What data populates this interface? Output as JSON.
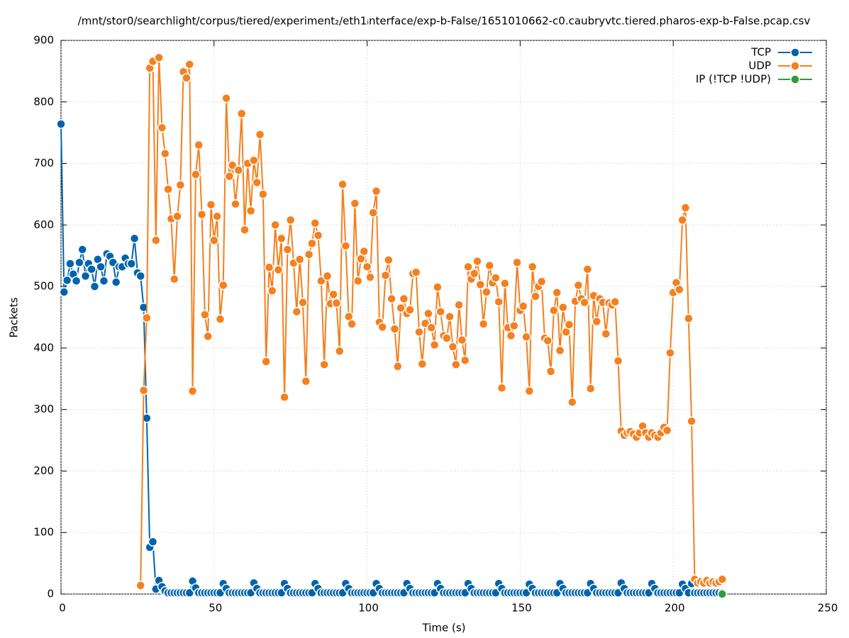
{
  "chart_data": {
    "type": "line",
    "title": "/mnt/stor0/searchlight/corpus/tiered/experiment₂/eth1ᵢnterface/exp-b-False/1651010662-c0.caubryvtc.tiered.pharos-exp-b-False.pcap.csv",
    "x_label": "Time (s)",
    "y_label": "Packets",
    "xlim": [
      0,
      250
    ],
    "xticks": [
      0,
      50,
      100,
      150,
      200,
      250
    ],
    "ylim": [
      0,
      900
    ],
    "yticks": [
      0,
      100,
      200,
      300,
      400,
      500,
      600,
      700,
      800,
      900
    ],
    "grid": true,
    "legend": "top-right",
    "x": [
      0,
      1,
      2,
      3,
      4,
      5,
      6,
      7,
      8,
      9,
      10,
      11,
      12,
      13,
      14,
      15,
      16,
      17,
      18,
      19,
      20,
      21,
      22,
      23,
      24,
      25,
      26,
      27,
      28,
      29,
      30,
      31,
      32,
      33,
      34,
      35,
      36,
      37,
      38,
      39,
      40,
      41,
      42,
      43,
      44,
      45,
      46,
      47,
      48,
      49,
      50,
      51,
      52,
      53,
      54,
      55,
      56,
      57,
      58,
      59,
      60,
      61,
      62,
      63,
      64,
      65,
      66,
      67,
      68,
      69,
      70,
      71,
      72,
      73,
      74,
      75,
      76,
      77,
      78,
      79,
      80,
      81,
      82,
      83,
      84,
      85,
      86,
      87,
      88,
      89,
      90,
      91,
      92,
      93,
      94,
      95,
      96,
      97,
      98,
      99,
      100,
      101,
      102,
      103,
      104,
      105,
      106,
      107,
      108,
      109,
      110,
      111,
      112,
      113,
      114,
      115,
      116,
      117,
      118,
      119,
      120,
      121,
      122,
      123,
      124,
      125,
      126,
      127,
      128,
      129,
      130,
      131,
      132,
      133,
      134,
      135,
      136,
      137,
      138,
      139,
      140,
      141,
      142,
      143,
      144,
      145,
      146,
      147,
      148,
      149,
      150,
      151,
      152,
      153,
      154,
      155,
      156,
      157,
      158,
      159,
      160,
      161,
      162,
      163,
      164,
      165,
      166,
      167,
      168,
      169,
      170,
      171,
      172,
      173,
      174,
      175,
      176,
      177,
      178,
      179,
      180,
      181,
      182,
      183,
      184,
      185,
      186,
      187,
      188,
      189,
      190,
      191,
      192,
      193,
      194,
      195,
      196,
      197,
      198,
      199,
      200,
      201,
      202,
      203,
      204,
      205,
      206,
      207,
      208,
      209,
      210,
      211,
      212,
      213,
      214,
      215,
      216
    ],
    "series": [
      {
        "name": "TCP",
        "color": "#0063ad",
        "values": [
          764,
          491,
          510,
          537,
          520,
          509,
          539,
          560,
          517,
          537,
          528,
          500,
          544,
          532,
          509,
          553,
          549,
          539,
          507,
          532,
          532,
          546,
          537,
          537,
          578,
          522,
          517,
          466,
          286,
          76,
          85,
          8,
          22,
          12,
          5,
          2,
          2,
          2,
          2,
          2,
          2,
          2,
          2,
          21,
          10,
          2,
          2,
          2,
          2,
          2,
          2,
          2,
          2,
          17,
          9,
          2,
          2,
          2,
          2,
          2,
          2,
          2,
          2,
          18,
          9,
          2,
          2,
          2,
          2,
          2,
          2,
          2,
          2,
          17,
          9,
          2,
          2,
          2,
          2,
          2,
          2,
          2,
          2,
          17,
          9,
          2,
          2,
          2,
          2,
          2,
          2,
          2,
          2,
          17,
          9,
          2,
          2,
          2,
          2,
          2,
          2,
          2,
          2,
          17,
          9,
          2,
          2,
          2,
          2,
          2,
          2,
          2,
          2,
          17,
          9,
          2,
          2,
          2,
          2,
          2,
          2,
          2,
          2,
          17,
          9,
          2,
          2,
          2,
          2,
          2,
          2,
          2,
          2,
          17,
          9,
          2,
          2,
          2,
          2,
          2,
          2,
          2,
          2,
          17,
          9,
          2,
          2,
          2,
          2,
          2,
          2,
          2,
          2,
          16,
          9,
          2,
          2,
          2,
          2,
          2,
          2,
          2,
          2,
          17,
          9,
          2,
          2,
          2,
          2,
          2,
          2,
          2,
          2,
          17,
          9,
          2,
          2,
          2,
          2,
          2,
          2,
          2,
          2,
          18,
          9,
          2,
          2,
          2,
          2,
          2,
          2,
          2,
          2,
          17,
          9,
          2,
          2,
          2,
          2,
          2,
          2,
          2,
          2,
          16,
          9,
          2,
          17,
          2,
          2,
          2,
          2,
          2,
          2,
          2,
          2,
          2,
          2
        ]
      },
      {
        "name": "UDP",
        "color": "#f4801f",
        "values": [
          null,
          null,
          null,
          null,
          null,
          null,
          null,
          null,
          null,
          null,
          null,
          null,
          null,
          null,
          null,
          null,
          null,
          null,
          null,
          null,
          null,
          null,
          null,
          null,
          null,
          null,
          14,
          331,
          449,
          855,
          866,
          575,
          872,
          758,
          716,
          658,
          610,
          512,
          614,
          665,
          849,
          839,
          861,
          330,
          682,
          730,
          617,
          454,
          419,
          633,
          575,
          614,
          447,
          502,
          806,
          679,
          697,
          634,
          689,
          781,
          592,
          700,
          623,
          705,
          669,
          747,
          650,
          378,
          531,
          493,
          600,
          527,
          578,
          320,
          560,
          608,
          538,
          459,
          544,
          474,
          346,
          552,
          570,
          603,
          583,
          509,
          373,
          517,
          472,
          487,
          473,
          395,
          666,
          566,
          451,
          439,
          635,
          509,
          545,
          557,
          532,
          515,
          620,
          655,
          442,
          434,
          518,
          543,
          480,
          431,
          370,
          465,
          480,
          456,
          462,
          521,
          523,
          426,
          374,
          440,
          456,
          433,
          405,
          499,
          459,
          420,
          416,
          451,
          402,
          373,
          470,
          413,
          380,
          532,
          512,
          521,
          541,
          503,
          439,
          491,
          534,
          506,
          514,
          475,
          335,
          505,
          433,
          420,
          436,
          539,
          461,
          468,
          418,
          330,
          532,
          484,
          500,
          508,
          416,
          412,
          362,
          461,
          490,
          396,
          466,
          426,
          438,
          312,
          476,
          502,
          480,
          474,
          528,
          334,
          485,
          443,
          480,
          474,
          423,
          473,
          470,
          475,
          379,
          265,
          258,
          262,
          264,
          260,
          255,
          262,
          273,
          262,
          255,
          262,
          258,
          255,
          262,
          271,
          266,
          392,
          490,
          506,
          495,
          608,
          628,
          448,
          281,
          24,
          18,
          20,
          18,
          22,
          18,
          20,
          18,
          20,
          24
        ]
      },
      {
        "name": "IP (!TCP  !UDP)",
        "color": "#2e9c3a",
        "x": [
          216
        ],
        "values": [
          0
        ]
      }
    ]
  }
}
